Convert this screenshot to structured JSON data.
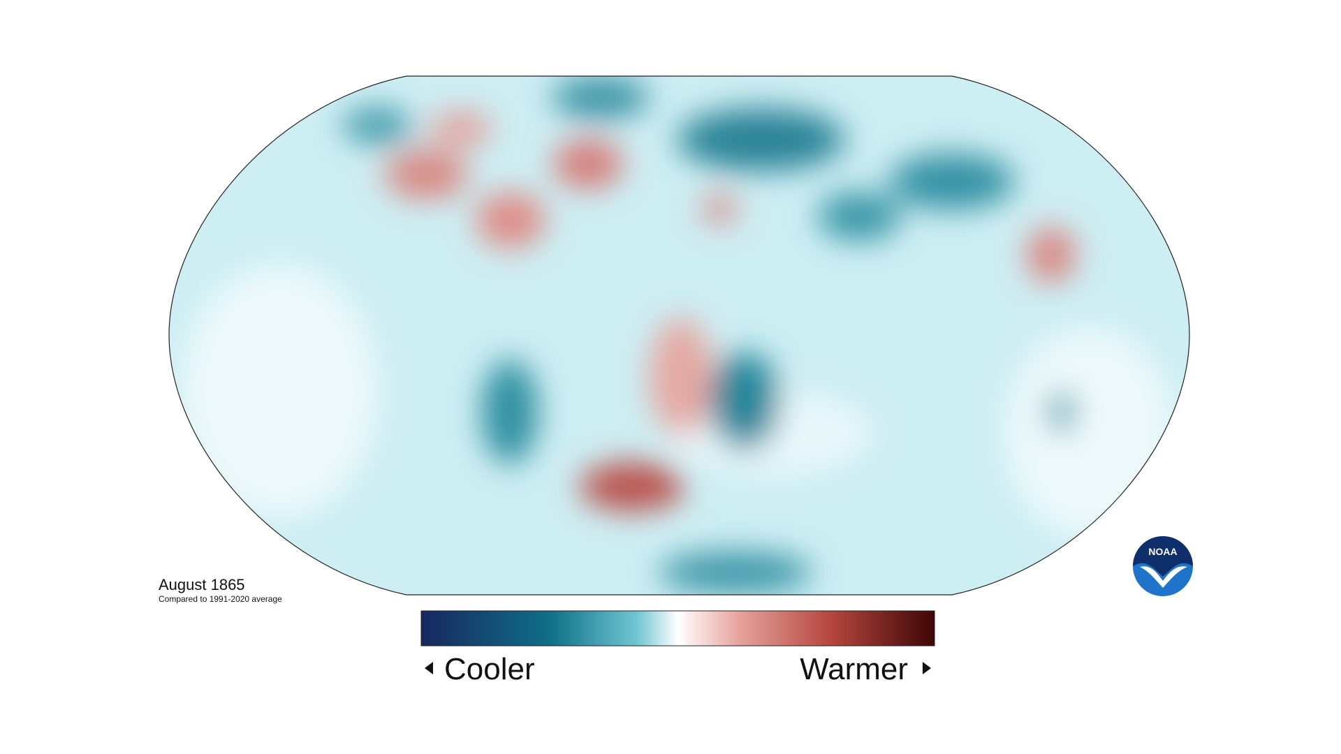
{
  "map": {
    "title": "August 1865",
    "subtitle": "Compared to 1991-2020 average"
  },
  "legend": {
    "low_label": "Cooler",
    "high_label": "Warmer"
  },
  "logo": {
    "label": "NOAA"
  }
}
